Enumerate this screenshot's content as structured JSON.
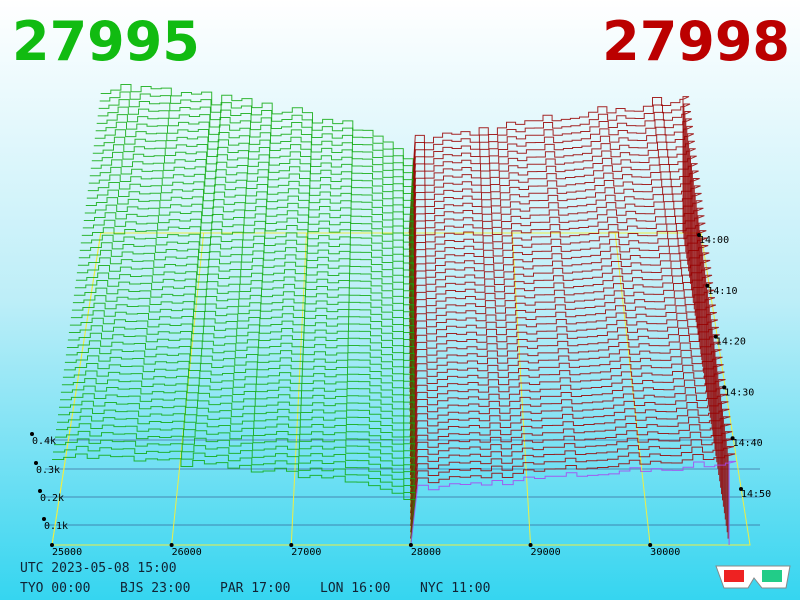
{
  "header": {
    "bid": "27995",
    "ask": "27998"
  },
  "price_axis": [
    "25000",
    "26000",
    "27000",
    "28000",
    "29000",
    "30000"
  ],
  "depth_axis": [
    "0.1k",
    "0.2k",
    "0.3k",
    "0.4k"
  ],
  "time_axis": [
    "14:00",
    "14:10",
    "14:20",
    "14:30",
    "14:40",
    "14:50"
  ],
  "footer": {
    "utc": "UTC 2023-05-08 15:00",
    "zones": [
      "TYO 00:00",
      "BJS 23:00",
      "PAR 17:00",
      "LON 16:00",
      "NYC 11:00"
    ]
  }
}
